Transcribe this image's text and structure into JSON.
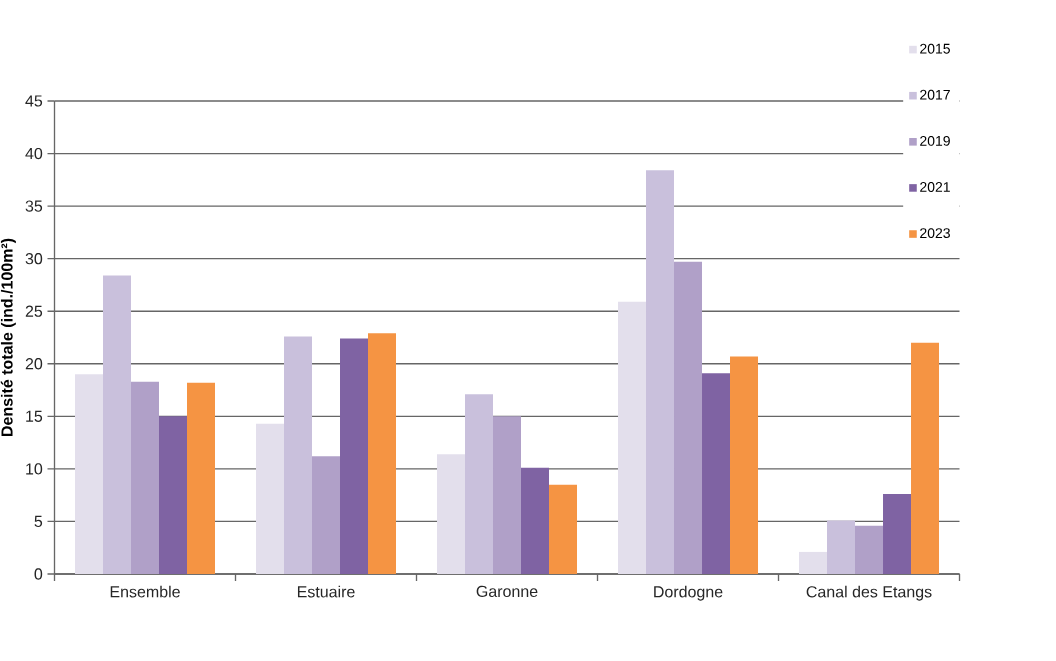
{
  "chart_data": {
    "type": "bar",
    "ylabel": "Densité totale (ind./100m²)",
    "categories": [
      "Ensemble",
      "Estuaire",
      "Garonne",
      "Dordogne",
      "Canal des Etangs"
    ],
    "series": [
      {
        "name": "2015",
        "color": "#e3dfec",
        "values": [
          19.0,
          14.3,
          11.4,
          25.9,
          2.1
        ]
      },
      {
        "name": "2017",
        "color": "#c9c0dc",
        "values": [
          28.4,
          22.6,
          17.1,
          38.4,
          5.1
        ]
      },
      {
        "name": "2019",
        "color": "#b0a0c8",
        "values": [
          18.3,
          11.2,
          15.0,
          29.7,
          4.6
        ]
      },
      {
        "name": "2021",
        "color": "#7f63a3",
        "values": [
          15.0,
          22.4,
          10.1,
          19.1,
          7.6
        ]
      },
      {
        "name": "2023",
        "color": "#f59443",
        "values": [
          18.2,
          22.9,
          8.5,
          20.7,
          22.0
        ]
      }
    ],
    "ylim": [
      0,
      45
    ],
    "yticks": [
      0,
      5,
      10,
      15,
      20,
      25,
      30,
      35,
      40,
      45
    ],
    "grid": "y",
    "legend": "top right"
  }
}
